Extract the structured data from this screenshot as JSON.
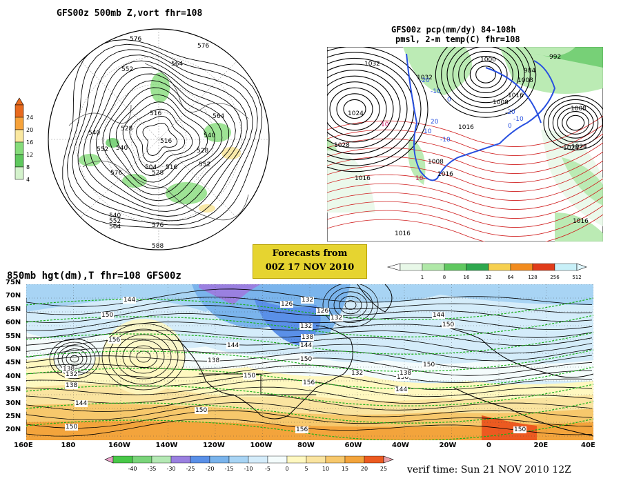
{
  "panels": {
    "top_left": {
      "title": "GFS00z  500mb Z,vort   fhr=108",
      "colorbar": {
        "ticks": [
          "24",
          "20",
          "16",
          "12",
          "8",
          "4"
        ],
        "colors": [
          "#e86a1e",
          "#f6a23a",
          "#fae8a0",
          "#86dc7a",
          "#5fc85e",
          "#d4f2cc"
        ]
      },
      "contour_labels": [
        "576",
        "576",
        "564",
        "552",
        "540",
        "528",
        "516",
        "540",
        "552",
        "516",
        "540",
        "528",
        "516",
        "504",
        "552",
        "564",
        "576",
        "540",
        "552",
        "564",
        "528",
        "576",
        "588"
      ]
    },
    "top_right": {
      "title_line1": "GFS00z pcp(mm/dy) 84-108h",
      "title_line2": "pmsl, 2-m temp(C)  fhr=108",
      "labels": [
        "1032",
        "1024",
        "1028",
        "1008",
        "1016",
        "1024",
        "1016",
        "1008",
        "1000",
        "992",
        "984",
        "1008",
        "1016",
        "1024",
        "1016",
        "1008",
        "1016",
        "1032",
        "1016",
        "-20",
        "-10",
        "0",
        "10",
        "20",
        "-10",
        "-20",
        "0",
        "10",
        "-10",
        "10"
      ],
      "colorbar": {
        "ticks": [
          "1",
          "8",
          "16",
          "32",
          "64",
          "128",
          "256",
          "512"
        ],
        "colors": [
          "#e8f8e8",
          "#b0e8a8",
          "#60c860",
          "#2ea84e",
          "#f6d050",
          "#f28c1e",
          "#e03c1a",
          "#c8f0f8",
          "#e0f8ff"
        ]
      }
    },
    "banner": {
      "line1": "Forecasts from",
      "line2": "00Z 17 NOV 2010",
      "color": "#e6d430"
    },
    "bottom": {
      "title": "850mb hgt(dm),T  fhr=108 GFS00z",
      "lat_labels": [
        "75N",
        "70N",
        "65N",
        "60N",
        "55N",
        "50N",
        "45N",
        "40N",
        "35N",
        "30N",
        "25N",
        "20N"
      ],
      "lon_labels": [
        "160E",
        "180",
        "160W",
        "140W",
        "120W",
        "100W",
        "80W",
        "60W",
        "40W",
        "20W",
        "0",
        "20E",
        "40E"
      ],
      "height_labels": [
        "144",
        "150",
        "156",
        "138",
        "132",
        "138",
        "144",
        "150",
        "132",
        "126",
        "132",
        "138",
        "144",
        "150",
        "138",
        "144",
        "150",
        "156",
        "126",
        "132",
        "138",
        "144",
        "150",
        "144",
        "150",
        "138",
        "132",
        "150",
        "156",
        "150"
      ],
      "colorbar": {
        "ticks": [
          "-40",
          "-35",
          "-30",
          "-25",
          "-20",
          "-15",
          "-10",
          "-5",
          "0",
          "5",
          "10",
          "15",
          "20",
          "25"
        ],
        "colors": [
          "#48c848",
          "#7ad47a",
          "#b4e8b4",
          "#9a80e0",
          "#5a90e8",
          "#7ab4ec",
          "#a8d4f4",
          "#d4ecfa",
          "#f4fcfc",
          "#fff8c0",
          "#fae4a0",
          "#f7c86c",
          "#f3a43c",
          "#ec5a20",
          "#e8a0a8"
        ]
      },
      "verif": "verif time: Sun 21 NOV 2010 12Z"
    }
  }
}
